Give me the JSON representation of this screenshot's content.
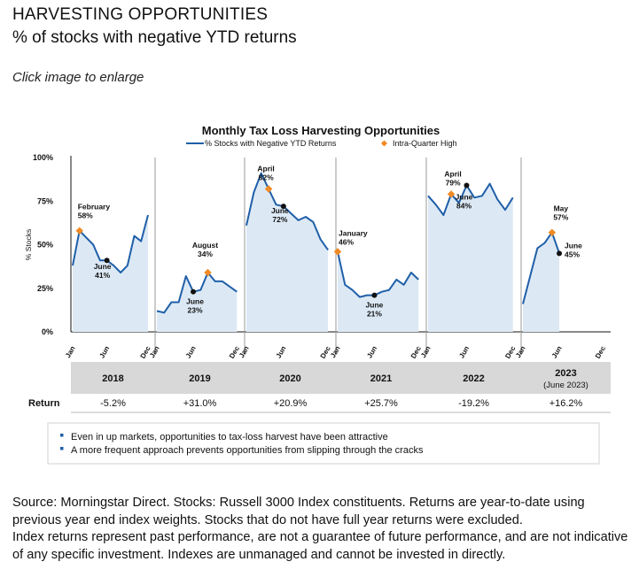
{
  "header": {
    "title": "HARVESTING OPPORTUNITIES",
    "subtitle": "% of stocks with negative YTD returns"
  },
  "hint": "Click image to enlarge",
  "chart_data": {
    "type": "area",
    "title": "Monthly Tax Loss Harvesting Opportunities",
    "legend": {
      "series": "% Stocks with Negative YTD Returns",
      "marker": "Intra-Quarter High",
      "placement": "top-center"
    },
    "ylabel": "% Stocks",
    "ylim": [
      0,
      100
    ],
    "yticks": [
      "0%",
      "25%",
      "50%",
      "75%",
      "100%"
    ],
    "month_ticks": [
      "Jan",
      "Jun",
      "Dec"
    ],
    "colors": {
      "line": "#1f5fa8",
      "fill": "#dce9f5",
      "high": "#f08a24",
      "low": "#111111",
      "divider": "#9a9a9a",
      "band": "#d8d8d8"
    },
    "years": [
      {
        "year": "2018",
        "year_note": "",
        "return": "-5.2%",
        "values": [
          38,
          58,
          54,
          50,
          41,
          41,
          38,
          34,
          38,
          55,
          52,
          67
        ],
        "high": {
          "month": 1,
          "value": 58,
          "label": "February",
          "pct": "58%"
        },
        "low": {
          "month": 5,
          "value": 41,
          "label": "June",
          "pct": "41%"
        }
      },
      {
        "year": "2019",
        "year_note": "",
        "return": "+31.0%",
        "values": [
          12,
          11,
          17,
          17,
          32,
          23,
          24,
          34,
          29,
          29,
          26,
          23
        ],
        "high": {
          "month": 7,
          "value": 34,
          "label": "August",
          "pct": "34%"
        },
        "low": {
          "month": 5,
          "value": 23,
          "label": "June",
          "pct": "23%"
        }
      },
      {
        "year": "2020",
        "year_note": "",
        "return": "+20.9%",
        "values": [
          61,
          80,
          91,
          82,
          73,
          72,
          68,
          64,
          66,
          63,
          53,
          47
        ],
        "high": {
          "month": 3,
          "value": 82,
          "label": "April",
          "pct": "82%"
        },
        "low": {
          "month": 5,
          "value": 72,
          "label": "June",
          "pct": "72%"
        }
      },
      {
        "year": "2021",
        "year_note": "",
        "return": "+25.7%",
        "values": [
          46,
          27,
          24,
          20,
          21,
          21,
          23,
          24,
          30,
          27,
          34,
          30
        ],
        "high": {
          "month": 0,
          "value": 46,
          "label": "January",
          "pct": "46%"
        },
        "low": {
          "month": 5,
          "value": 21,
          "label": "June",
          "pct": "21%"
        }
      },
      {
        "year": "2022",
        "year_note": "",
        "return": "-19.2%",
        "values": [
          78,
          73,
          67,
          79,
          74,
          84,
          77,
          78,
          85,
          76,
          70,
          77
        ],
        "high": {
          "month": 3,
          "value": 79,
          "label": "April",
          "pct": "79%"
        },
        "low": {
          "month": 5,
          "value": 84,
          "label": "June",
          "pct": "84%"
        }
      },
      {
        "year": "2023",
        "year_note": "(June 2023)",
        "return": "+16.2%",
        "values": [
          16,
          32,
          48,
          51,
          57,
          45
        ],
        "high": {
          "month": 4,
          "value": 57,
          "label": "May",
          "pct": "57%"
        },
        "low": {
          "month": 5,
          "value": 45,
          "label": "June",
          "pct": "45%"
        }
      }
    ],
    "return_row_label": "Return",
    "bullets": [
      "Even in up markets, opportunities to tax-loss harvest have been attractive",
      "A more frequent approach prevents opportunities from slipping through the cracks"
    ]
  },
  "source": {
    "line1": "Source: Morningstar Direct. Stocks: Russell 3000 Index constituents. Returns are year-to-date using previous year end index weights. Stocks that do not have full year returns were excluded.",
    "line2": "Index returns represent past performance, are not a guarantee of future performance, and are not indicative of any specific investment. Indexes are unmanaged and cannot be invested in directly."
  }
}
